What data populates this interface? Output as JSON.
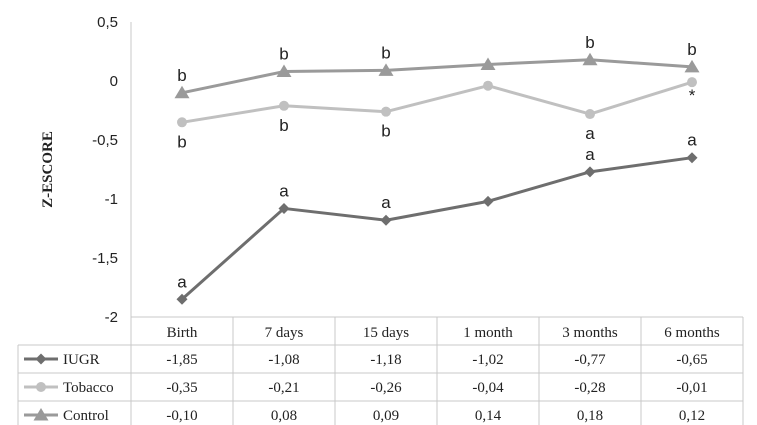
{
  "chart_data": {
    "type": "line",
    "ylabel": "Z-ESCORE",
    "xlabel": "",
    "ylim": [
      -2,
      0.5
    ],
    "yticks": [
      "0,5",
      "0",
      "-0,5",
      "-1",
      "-1,5",
      "-2"
    ],
    "categories": [
      "Birth",
      "7 days",
      "15 days",
      "1 month",
      "3 months",
      "6 months"
    ],
    "grid": false,
    "legend": "in data table",
    "series": [
      {
        "name": "IUGR",
        "color": "#6e6e6e",
        "marker": "diamond",
        "values": [
          -1.85,
          -1.08,
          -1.18,
          -1.02,
          -0.77,
          -0.65
        ],
        "labels": [
          "-1,85",
          "-1,08",
          "-1,18",
          "-1,02",
          "-0,77",
          "-0,65"
        ]
      },
      {
        "name": "Tobacco",
        "color": "#c0c0c0",
        "marker": "circle",
        "values": [
          -0.35,
          -0.21,
          -0.26,
          -0.04,
          -0.28,
          -0.01
        ],
        "labels": [
          "-0,35",
          "-0,21",
          "-0,26",
          "-0,04",
          "-0,28",
          "-0,01"
        ]
      },
      {
        "name": "Control",
        "color": "#9a9a9a",
        "marker": "triangle",
        "values": [
          -0.1,
          0.08,
          0.09,
          0.14,
          0.18,
          0.12
        ],
        "labels": [
          "-0,10",
          "0,08",
          "0,09",
          "0,14",
          "0,18",
          "0,12"
        ]
      }
    ],
    "annotations": [
      {
        "text": "b",
        "series": "Control",
        "index": 0,
        "pos": "above"
      },
      {
        "text": "b",
        "series": "Control",
        "index": 1,
        "pos": "above"
      },
      {
        "text": "b",
        "series": "Control",
        "index": 2,
        "pos": "above"
      },
      {
        "text": "b",
        "series": "Control",
        "index": 4,
        "pos": "above"
      },
      {
        "text": "b",
        "series": "Control",
        "index": 5,
        "pos": "above"
      },
      {
        "text": "b",
        "series": "Tobacco",
        "index": 0,
        "pos": "below"
      },
      {
        "text": "b",
        "series": "Tobacco",
        "index": 1,
        "pos": "below"
      },
      {
        "text": "b",
        "series": "Tobacco",
        "index": 2,
        "pos": "below"
      },
      {
        "text": "a",
        "series": "Tobacco",
        "index": 4,
        "pos": "below"
      },
      {
        "text": "*",
        "series": "Tobacco",
        "index": 5,
        "pos": "below"
      },
      {
        "text": "a",
        "series": "IUGR",
        "index": 0,
        "pos": "above"
      },
      {
        "text": "a",
        "series": "IUGR",
        "index": 1,
        "pos": "above"
      },
      {
        "text": "a",
        "series": "IUGR",
        "index": 2,
        "pos": "above"
      },
      {
        "text": "a",
        "series": "IUGR",
        "index": 4,
        "pos": "above"
      },
      {
        "text": "a",
        "series": "IUGR",
        "index": 5,
        "pos": "above"
      }
    ]
  }
}
